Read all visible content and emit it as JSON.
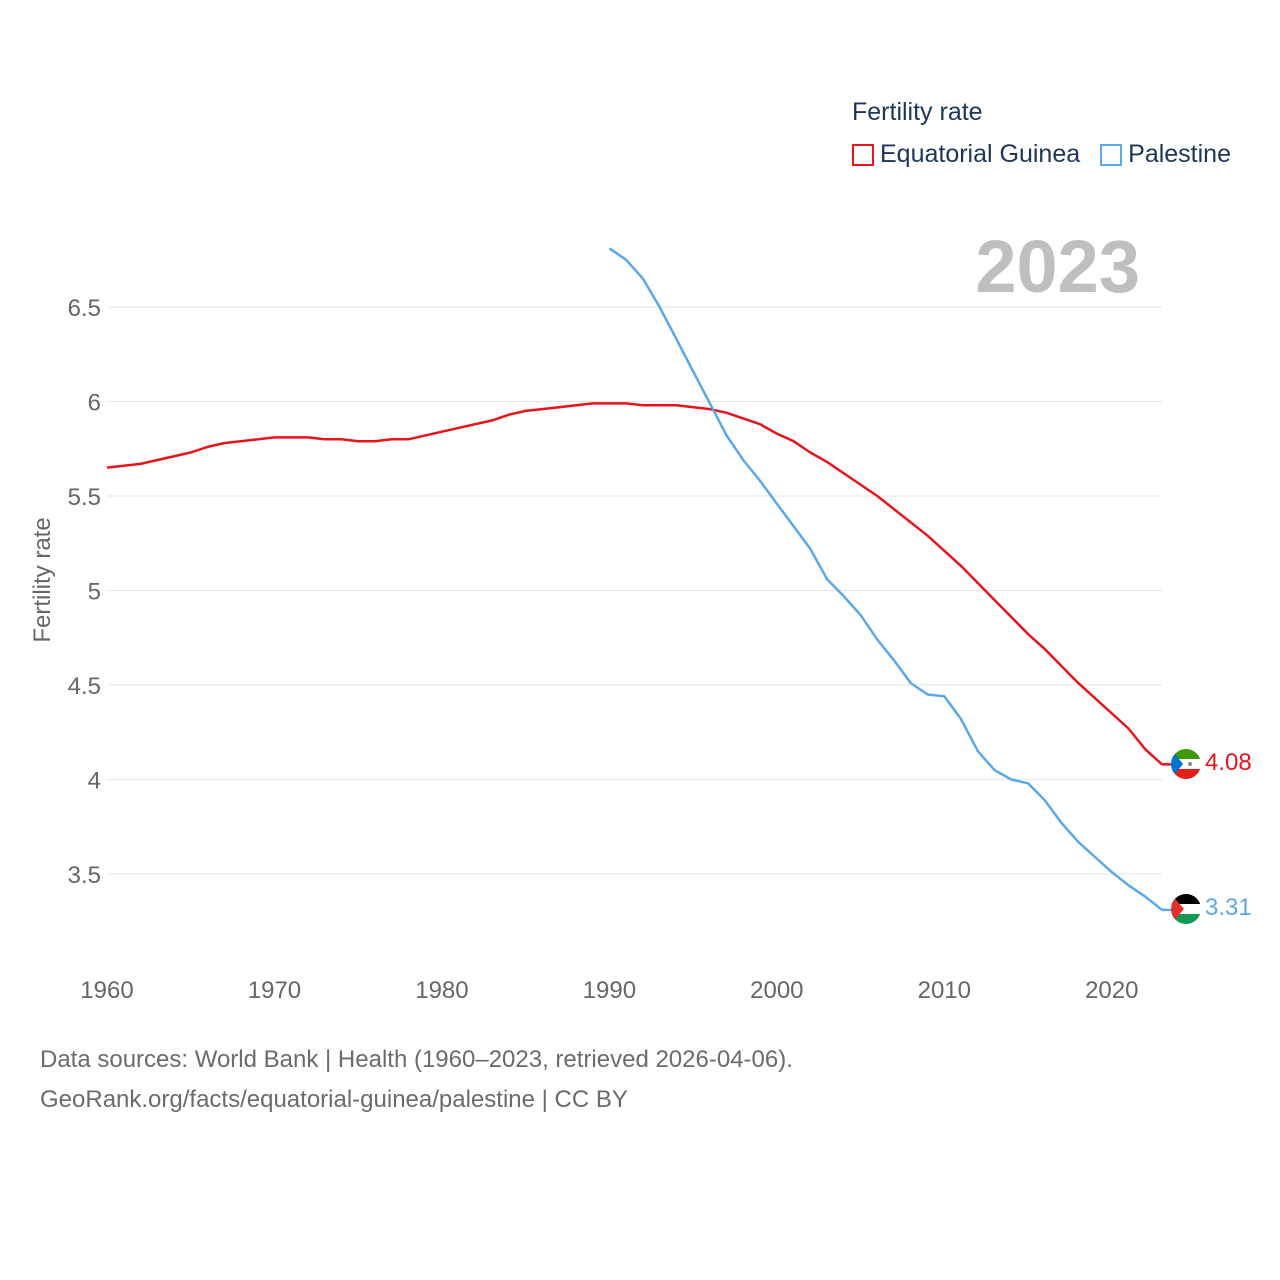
{
  "legend": {
    "title": "Fertility rate",
    "items": [
      {
        "label": "Equatorial Guinea",
        "color": "#e8141c"
      },
      {
        "label": "Palestine",
        "color": "#5ba8e8"
      }
    ]
  },
  "year_overlay": "2023",
  "footer": {
    "line1": "Data sources: World Bank | Health (1960–2023, retrieved 2026-04-06).",
    "line2": "GeoRank.org/facts/equatorial-guinea/palestine | CC BY"
  },
  "chart_data": {
    "type": "line",
    "title": "Fertility rate",
    "xlabel": "",
    "ylabel": "Fertility rate",
    "xlim": [
      1960,
      2023
    ],
    "ylim": [
      3.2,
      6.9
    ],
    "x_ticks": [
      1960,
      1970,
      1980,
      1990,
      2000,
      2010,
      2020
    ],
    "y_ticks": [
      3.5,
      4,
      4.5,
      5,
      5.5,
      6,
      6.5
    ],
    "y_tick_labels": [
      "3.5",
      "4",
      "4.5",
      "5",
      "5.5",
      "6",
      "6.5"
    ],
    "grid": true,
    "legend": "top-right",
    "series": [
      {
        "name": "Equatorial Guinea",
        "color": "#e8141c",
        "end_label": "4.08",
        "x": [
          1960,
          1962,
          1965,
          1966,
          1967,
          1970,
          1972,
          1973,
          1974,
          1975,
          1976,
          1977,
          1978,
          1980,
          1983,
          1984,
          1985,
          1987,
          1989,
          1991,
          1992,
          1994,
          1996,
          1997,
          1999,
          2000,
          2001,
          2002,
          2003,
          2006,
          2009,
          2011,
          2013,
          2015,
          2016,
          2018,
          2021,
          2022,
          2023
        ],
        "values": [
          5.65,
          5.67,
          5.73,
          5.76,
          5.78,
          5.81,
          5.81,
          5.8,
          5.8,
          5.79,
          5.79,
          5.8,
          5.8,
          5.84,
          5.9,
          5.93,
          5.95,
          5.97,
          5.99,
          5.99,
          5.98,
          5.98,
          5.96,
          5.94,
          5.88,
          5.83,
          5.79,
          5.73,
          5.68,
          5.5,
          5.29,
          5.13,
          4.95,
          4.77,
          4.69,
          4.51,
          4.27,
          4.16,
          4.08
        ]
      },
      {
        "name": "Palestine",
        "color": "#5ba8e8",
        "end_label": "3.31",
        "x": [
          1990,
          1991,
          1992,
          1993,
          1994,
          1995,
          1996,
          1997,
          1998,
          1999,
          2000,
          2001,
          2002,
          2003,
          2004,
          2005,
          2006,
          2007,
          2008,
          2009,
          2010,
          2011,
          2012,
          2013,
          2014,
          2015,
          2016,
          2017,
          2018,
          2019,
          2020,
          2021,
          2022,
          2023
        ],
        "values": [
          6.81,
          6.75,
          6.65,
          6.5,
          6.33,
          6.16,
          5.99,
          5.82,
          5.69,
          5.58,
          5.46,
          5.34,
          5.22,
          5.06,
          4.97,
          4.87,
          4.74,
          4.63,
          4.51,
          4.45,
          4.44,
          4.32,
          4.15,
          4.05,
          4.0,
          3.98,
          3.89,
          3.77,
          3.67,
          3.59,
          3.51,
          3.44,
          3.38,
          3.31
        ]
      }
    ]
  }
}
